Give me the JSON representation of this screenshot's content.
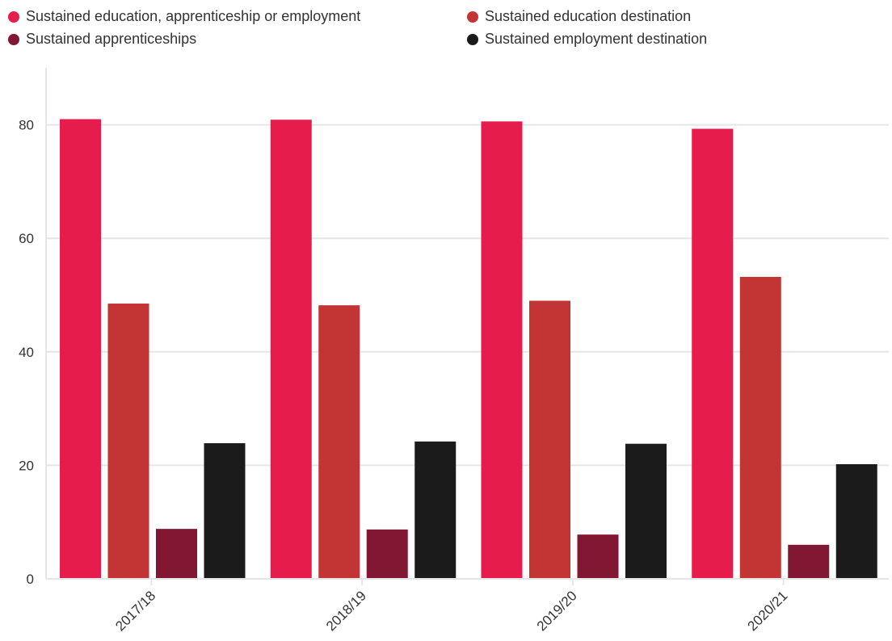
{
  "colors": {
    "series_1": "#e51c4c",
    "series_2": "#c33434",
    "series_3": "#821733",
    "series_4": "#1b1b1b",
    "grid": "#e6e6e6",
    "axis_text": "#333333"
  },
  "chart_data": {
    "type": "bar",
    "categories": [
      "2017/18",
      "2018/19",
      "2019/20",
      "2020/21"
    ],
    "series": [
      {
        "name": "Sustained education, apprenticeship or employment",
        "values": [
          81.0,
          80.9,
          80.6,
          79.3
        ]
      },
      {
        "name": "Sustained education destination",
        "values": [
          48.5,
          48.2,
          49.0,
          53.2
        ]
      },
      {
        "name": "Sustained apprenticeships",
        "values": [
          8.8,
          8.7,
          7.8,
          6.0
        ]
      },
      {
        "name": "Sustained employment destination",
        "values": [
          23.9,
          24.2,
          23.8,
          20.2
        ]
      }
    ],
    "y_ticks": [
      "0",
      "20",
      "40",
      "60",
      "80"
    ],
    "ylim": [
      0,
      90
    ],
    "grid": true,
    "legend_position": "top",
    "title": "",
    "xlabel": "",
    "ylabel": ""
  }
}
